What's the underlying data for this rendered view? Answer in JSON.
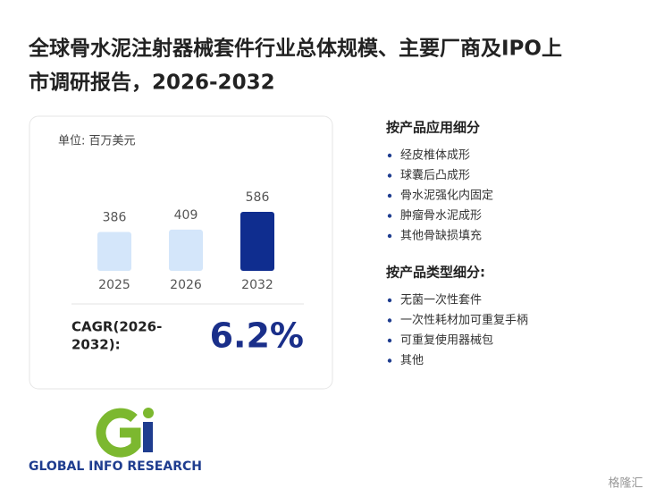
{
  "title_lines": [
    "全球骨水泥注射器械套件行业总体规模、主要厂商及IPO上",
    "市调研报告，2026-2032"
  ],
  "chart_data": {
    "type": "bar",
    "subtitle": "单位: 百万美元",
    "categories": [
      "2025",
      "2026",
      "2032"
    ],
    "values": [
      386,
      409,
      586
    ],
    "colors": [
      "#d4e6fa",
      "#d4e6fa",
      "#0f2d8f"
    ]
  },
  "cagr": {
    "label_lines": [
      "CAGR(2026-",
      "2032):"
    ],
    "value": "6.2%"
  },
  "sections": [
    {
      "heading": "按产品应用细分",
      "items": [
        "经皮椎体成形",
        "球囊后凸成形",
        "骨水泥强化内固定",
        "肿瘤骨水泥成形",
        "其他骨缺损填充"
      ]
    },
    {
      "heading": "按产品类型细分:",
      "items": [
        "无菌一次性套件",
        "一次性耗材加可重复手柄",
        "可重复使用器械包",
        "其他"
      ]
    }
  ],
  "logo_text": "GLOBAL INFO RESEARCH",
  "watermark": "格隆汇"
}
